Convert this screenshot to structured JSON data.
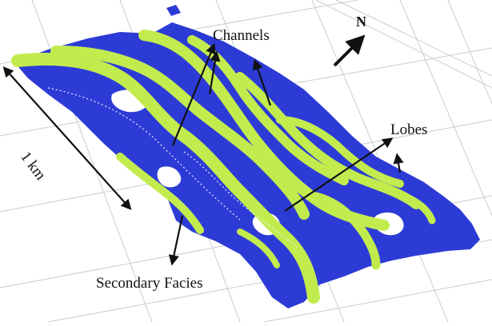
{
  "labels": {
    "channels": "Channels",
    "lobes": "Lobes",
    "secondary_facies": "Secondary Facies",
    "north": "N",
    "scale": "1 km"
  },
  "colors": {
    "background": "#ffffff",
    "grid": "#c8ccd4",
    "secondary_facies": "#2d3bd6",
    "channel_facies": "#c2ec4e",
    "arrows": "#111111"
  }
}
